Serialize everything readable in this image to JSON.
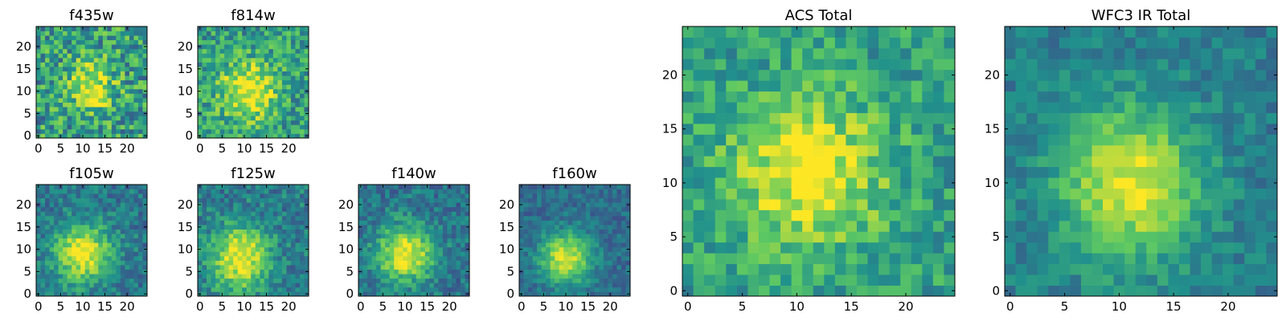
{
  "chart_data": [
    {
      "type": "heatmap",
      "title": "f435w",
      "xticks": [
        0,
        5,
        10,
        15,
        20
      ],
      "yticks": [
        0,
        5,
        10,
        15,
        20
      ],
      "xlim": [
        0,
        25
      ],
      "ylim": [
        0,
        25
      ],
      "colormap": "viridis",
      "blob": {
        "cx": 12,
        "cy": 11,
        "sx": 3.5,
        "sy": 4.0,
        "amp": 0.45,
        "base": 0.55,
        "noise": 0.55
      }
    },
    {
      "type": "heatmap",
      "title": "f814w",
      "xticks": [
        0,
        5,
        10,
        15,
        20
      ],
      "yticks": [
        0,
        5,
        10,
        15,
        20
      ],
      "xlim": [
        0,
        25
      ],
      "ylim": [
        0,
        25
      ],
      "colormap": "viridis",
      "blob": {
        "cx": 11,
        "cy": 10,
        "sx": 4.5,
        "sy": 4.5,
        "amp": 0.5,
        "base": 0.55,
        "noise": 0.45
      }
    },
    {
      "type": "heatmap",
      "title": "f105w",
      "xticks": [
        0,
        5,
        10,
        15,
        20
      ],
      "yticks": [
        0,
        5,
        10,
        15,
        20
      ],
      "xlim": [
        0,
        25
      ],
      "ylim": [
        0,
        25
      ],
      "colormap": "viridis",
      "blob": {
        "cx": 10,
        "cy": 9,
        "sx": 4.5,
        "sy": 4.5,
        "amp": 0.6,
        "base": 0.4,
        "noise": 0.3
      }
    },
    {
      "type": "heatmap",
      "title": "f125w",
      "xticks": [
        0,
        5,
        10,
        15,
        20
      ],
      "yticks": [
        0,
        5,
        10,
        15,
        20
      ],
      "xlim": [
        0,
        25
      ],
      "ylim": [
        0,
        25
      ],
      "colormap": "viridis",
      "blob": {
        "cx": 9,
        "cy": 8,
        "sx": 4.5,
        "sy": 5.0,
        "amp": 0.6,
        "base": 0.42,
        "noise": 0.32
      }
    },
    {
      "type": "heatmap",
      "title": "f140w",
      "xticks": [
        0,
        5,
        10,
        15,
        20
      ],
      "yticks": [
        0,
        5,
        10,
        15,
        20
      ],
      "xlim": [
        0,
        25
      ],
      "ylim": [
        0,
        25
      ],
      "colormap": "viridis",
      "blob": {
        "cx": 10,
        "cy": 9,
        "sx": 4.5,
        "sy": 4.5,
        "amp": 0.62,
        "base": 0.38,
        "noise": 0.3
      }
    },
    {
      "type": "heatmap",
      "title": "f160w",
      "xticks": [
        0,
        5,
        10,
        15,
        20
      ],
      "yticks": [
        0,
        5,
        10,
        15,
        20
      ],
      "xlim": [
        0,
        25
      ],
      "ylim": [
        0,
        25
      ],
      "colormap": "viridis",
      "blob": {
        "cx": 10,
        "cy": 8,
        "sx": 4.0,
        "sy": 4.0,
        "amp": 0.62,
        "base": 0.35,
        "noise": 0.22
      }
    },
    {
      "type": "heatmap",
      "title": "ACS Total",
      "xticks": [
        0,
        5,
        10,
        15,
        20
      ],
      "yticks": [
        0,
        5,
        10,
        15,
        20
      ],
      "xlim": [
        0,
        25
      ],
      "ylim": [
        0,
        25
      ],
      "colormap": "viridis",
      "blob": {
        "cx": 11,
        "cy": 11,
        "sx": 5.0,
        "sy": 5.0,
        "amp": 0.45,
        "base": 0.55,
        "noise": 0.35
      }
    },
    {
      "type": "heatmap",
      "title": "WFC3 IR Total",
      "xticks": [
        0,
        5,
        10,
        15,
        20
      ],
      "yticks": [
        0,
        5,
        10,
        15,
        20
      ],
      "xlim": [
        0,
        25
      ],
      "ylim": [
        0,
        25
      ],
      "colormap": "viridis",
      "blob": {
        "cx": 11,
        "cy": 10,
        "sx": 4.5,
        "sy": 5.0,
        "amp": 0.55,
        "base": 0.42,
        "noise": 0.22
      }
    }
  ],
  "colormap_stops": [
    "#440154",
    "#3b528b",
    "#21918c",
    "#5ec962",
    "#fde725"
  ]
}
